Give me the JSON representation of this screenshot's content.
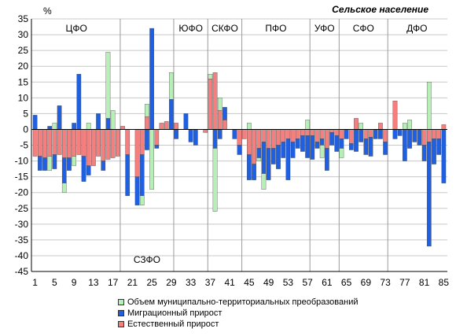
{
  "title": "Сельское население",
  "chart_data": {
    "type": "bar",
    "stacked": "signed",
    "unit_label": "%",
    "ylim": [
      -45,
      35
    ],
    "ytick_step": 5,
    "grid": true,
    "x_tick_labels": [
      "1",
      "5",
      "9",
      "13",
      "17",
      "21",
      "25",
      "29",
      "33",
      "37",
      "41",
      "45",
      "49",
      "53",
      "57",
      "61",
      "65",
      "69",
      "73",
      "77",
      "81",
      "85"
    ],
    "x_tick_values": [
      1,
      5,
      9,
      13,
      17,
      21,
      25,
      29,
      33,
      37,
      41,
      45,
      49,
      53,
      57,
      61,
      65,
      69,
      73,
      77,
      81,
      85
    ],
    "categories": [
      1,
      2,
      3,
      4,
      5,
      6,
      7,
      8,
      9,
      10,
      11,
      12,
      13,
      14,
      15,
      16,
      17,
      18,
      19,
      20,
      21,
      22,
      23,
      24,
      25,
      26,
      27,
      28,
      29,
      30,
      31,
      32,
      33,
      34,
      35,
      36,
      37,
      38,
      39,
      40,
      41,
      42,
      43,
      44,
      45,
      46,
      47,
      48,
      49,
      50,
      51,
      52,
      53,
      54,
      55,
      56,
      57,
      58,
      59,
      60,
      61,
      62,
      63,
      64,
      65,
      66,
      67,
      68,
      69,
      70,
      71,
      72,
      73,
      74,
      75,
      76,
      77,
      78,
      79,
      80,
      81,
      82,
      83,
      84,
      85
    ],
    "regions": [
      {
        "label": "ЦФО",
        "start": 1,
        "end": 18
      },
      {
        "label": "СЗФО",
        "start": 19,
        "end": 29
      },
      {
        "label": "ЮФО",
        "start": 30,
        "end": 36
      },
      {
        "label": "СКФО",
        "start": 37,
        "end": 43
      },
      {
        "label": "ПФО",
        "start": 44,
        "end": 57
      },
      {
        "label": "УФО",
        "start": 58,
        "end": 63
      },
      {
        "label": "СФО",
        "start": 64,
        "end": 73
      },
      {
        "label": "ДФО",
        "start": 74,
        "end": 85
      }
    ],
    "series": [
      {
        "name": "Объем муниципально-территориальных преобразований",
        "color": "#b7f0b7",
        "values": [
          0,
          0,
          0,
          -4.5,
          2,
          0,
          -3,
          0,
          -3,
          0,
          0,
          2,
          0,
          0,
          0,
          21,
          6,
          0,
          0,
          0,
          0,
          0,
          -3,
          4,
          -19,
          0,
          0,
          0,
          8.5,
          0,
          0,
          0,
          0,
          0,
          0,
          0,
          1.5,
          -20,
          4,
          0,
          0,
          0,
          0,
          0,
          2,
          0,
          -1,
          -5,
          0,
          0,
          0,
          0,
          0,
          0,
          0,
          0,
          3,
          0,
          0,
          -4,
          0,
          0,
          0,
          -3,
          0,
          0,
          0,
          2,
          0,
          0,
          0,
          0,
          0,
          0,
          0,
          0,
          2,
          3,
          0,
          0,
          0,
          15,
          0,
          0,
          0
        ]
      },
      {
        "name": "Миграционный прирост",
        "color": "#1f5fe0",
        "values": [
          4.5,
          -4.5,
          -4,
          1,
          -4.5,
          7.5,
          -8,
          -4,
          2,
          17.5,
          -8,
          -3,
          0,
          5,
          -3,
          3.5,
          0,
          0,
          0,
          -13,
          0,
          -9,
          -13,
          -6.5,
          32,
          -1,
          0,
          0,
          9.5,
          -3,
          0,
          5,
          -4,
          -5,
          0,
          0,
          0,
          -6,
          -3,
          4,
          0,
          -3,
          -3,
          0,
          -8,
          -5,
          -3,
          -10,
          -10,
          -5,
          -7.5,
          -5,
          -13,
          -5,
          -3,
          -5,
          -7,
          -7.5,
          -2,
          -2,
          -7,
          -4,
          -5,
          -3,
          -3,
          -2,
          -7,
          -4,
          -5,
          -6,
          -3,
          -3,
          -4,
          0,
          -3,
          -2,
          -10,
          -6,
          -4,
          -5,
          -5,
          -33,
          -8,
          -5,
          -17
        ]
      },
      {
        "name": "Естественный прирост",
        "color": "#f47f7f",
        "values": [
          -8.5,
          -8.5,
          -9,
          -8.5,
          -8,
          -8,
          -9,
          -9,
          -8.5,
          -8,
          -8.5,
          -11.5,
          -11.5,
          -8.5,
          -10,
          -9.5,
          -9,
          -8.5,
          1,
          -8,
          0,
          -15,
          -8,
          4,
          0,
          -5,
          2,
          2.5,
          0,
          2,
          0,
          0,
          0,
          0,
          0,
          -1,
          16,
          18,
          6,
          3,
          0,
          0,
          -5,
          -3,
          -8,
          -11,
          -6,
          -4,
          -6,
          -6,
          -5,
          -4,
          -3,
          -4,
          -3,
          -2,
          -2,
          -2,
          -4,
          -3,
          -6,
          -1,
          -2,
          -3,
          0,
          -4.5,
          3.5,
          0,
          -3,
          -2.5,
          0,
          2,
          -4,
          0,
          9,
          0,
          0,
          0,
          0,
          0,
          -5,
          -4,
          -3,
          -3,
          1.5
        ]
      }
    ]
  },
  "legend": {
    "items": [
      "Объем муниципально-территориальных преобразований",
      "Миграционный прирост",
      "Естественный прирост"
    ]
  }
}
